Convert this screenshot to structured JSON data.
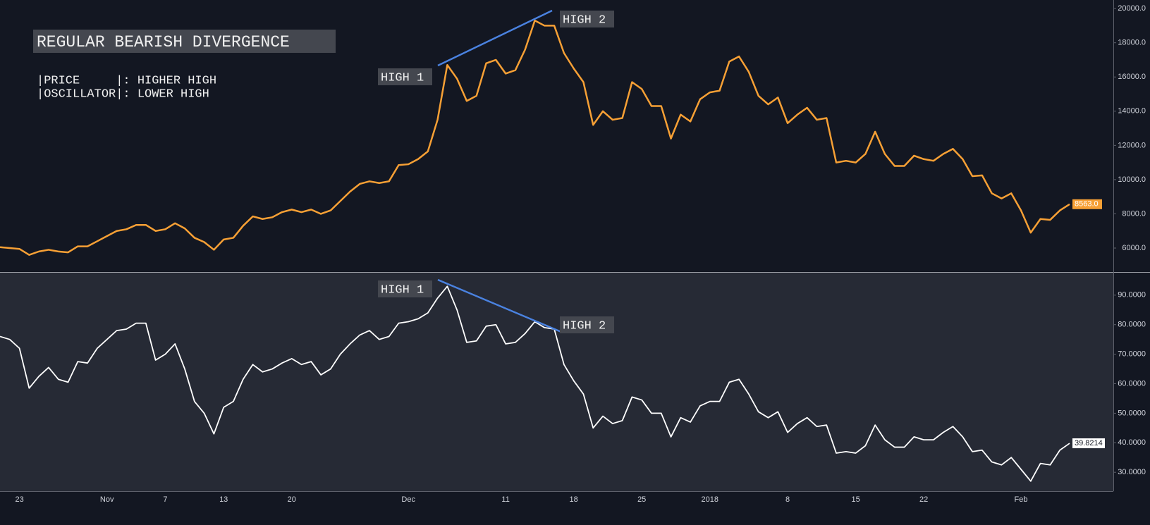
{
  "chart_data": {
    "type": "line",
    "categories": [
      null,
      null,
      "23",
      null,
      null,
      null,
      null,
      null,
      null,
      null,
      null,
      "Nov",
      null,
      null,
      null,
      null,
      null,
      "7",
      null,
      null,
      null,
      null,
      null,
      "13",
      null,
      null,
      null,
      null,
      null,
      null,
      "20",
      null,
      null,
      null,
      null,
      null,
      null,
      null,
      null,
      null,
      null,
      null,
      "Dec",
      null,
      null,
      null,
      null,
      null,
      null,
      null,
      null,
      null,
      "11",
      null,
      null,
      null,
      null,
      null,
      null,
      "18",
      null,
      null,
      null,
      null,
      null,
      null,
      "25",
      null,
      null,
      null,
      null,
      null,
      null,
      "2018",
      null,
      null,
      null,
      null,
      null,
      null,
      null,
      "8",
      null,
      null,
      null,
      null,
      null,
      null,
      "15",
      null,
      null,
      null,
      null,
      null,
      null,
      "22",
      null,
      null,
      null,
      null,
      null,
      null,
      null,
      null,
      null,
      "Feb",
      null,
      null,
      null,
      null,
      null
    ],
    "series": [
      {
        "color": "#f7a035",
        "last_value_label": "8563.0",
        "values": [
          6050,
          6000,
          5950,
          5600,
          5800,
          5900,
          5800,
          5750,
          6100,
          6100,
          6400,
          6700,
          7000,
          7100,
          7350,
          7350,
          7000,
          7100,
          7450,
          7150,
          6600,
          6350,
          5900,
          6500,
          6600,
          7300,
          7850,
          7700,
          7800,
          8100,
          8250,
          8100,
          8250,
          8000,
          8200,
          8750,
          9300,
          9750,
          9900,
          9800,
          9900,
          10850,
          10900,
          11200,
          11650,
          13500,
          16700,
          15900,
          14600,
          14900,
          16800,
          17000,
          16200,
          16400,
          17600,
          19300,
          19000,
          19000,
          17400,
          16500,
          15700,
          13200,
          14000,
          13500,
          13600,
          15700,
          15300,
          14300,
          14300,
          12400,
          13800,
          13400,
          14700,
          15100,
          15200,
          16900,
          17200,
          16300,
          14900,
          14400,
          14800,
          13300,
          13800,
          14200,
          13500,
          13600,
          11000,
          11100,
          11000,
          11500,
          12800,
          11500,
          10800,
          10800,
          11400,
          11200,
          11100,
          11500,
          11800,
          11200,
          10200,
          10250,
          9200,
          8900,
          9200,
          8200,
          6900,
          7700,
          7650,
          8200,
          8563
        ]
      },
      {
        "color": "#ffffff",
        "axis": "y2",
        "last_value_label": "39.8214",
        "values": [
          76,
          75,
          72,
          58.5,
          62.5,
          65.5,
          61.5,
          60.5,
          67.5,
          67,
          72,
          75,
          78,
          78.5,
          80.5,
          80.5,
          68,
          70,
          73.5,
          65,
          54,
          50,
          43,
          52,
          54,
          61.5,
          66.5,
          64,
          65,
          67,
          68.5,
          66.5,
          67.5,
          63,
          65,
          70,
          73.5,
          76.5,
          78,
          75,
          76,
          80.5,
          81,
          82,
          84,
          89,
          93,
          85,
          74,
          74.5,
          79.5,
          80,
          73.5,
          74,
          77,
          81,
          79,
          78.5,
          66.5,
          61,
          56.5,
          45,
          49,
          46.5,
          47.5,
          55.5,
          54.5,
          50,
          50,
          42,
          48.5,
          47,
          52.5,
          54,
          54,
          60.5,
          61.5,
          56.5,
          50.5,
          48.5,
          50.5,
          43.5,
          46.5,
          48.5,
          45.5,
          46,
          36.5,
          37,
          36.5,
          39,
          46,
          41,
          38.5,
          38.5,
          42,
          41,
          41,
          43.5,
          45.5,
          42,
          37,
          37.5,
          33.5,
          32.5,
          35,
          31,
          27,
          33,
          32.5,
          37.5,
          39.8214
        ]
      }
    ],
    "ylim": [
      4600,
      20500
    ],
    "yticks": [
      {
        "value": 6000,
        "label": "6000.0"
      },
      {
        "value": 8000,
        "label": "8000.0"
      },
      {
        "value": 10000,
        "label": "10000.0"
      },
      {
        "value": 12000,
        "label": "12000.0"
      },
      {
        "value": 14000,
        "label": "14000.0"
      },
      {
        "value": 16000,
        "label": "16000.0"
      },
      {
        "value": 18000,
        "label": "18000.0"
      },
      {
        "value": 20000,
        "label": "20000.0"
      }
    ],
    "y2lim": [
      23.6,
      97.6
    ],
    "y2ticks": [
      {
        "value": 30,
        "label": "30.0000"
      },
      {
        "value": 40,
        "label": "40.0000"
      },
      {
        "value": 50,
        "label": "50.0000"
      },
      {
        "value": 60,
        "label": "60.0000"
      },
      {
        "value": 70,
        "label": "70.0000"
      },
      {
        "value": 80,
        "label": "80.0000"
      },
      {
        "value": 90,
        "label": "90.0000"
      }
    ],
    "grid": false,
    "annotations": {
      "title": "REGULAR BEARISH DIVERGENCE",
      "legend": [
        "|PRICE     |: HIGHER HIGH",
        "|OSCILLATOR|: LOWER HIGH"
      ],
      "price_highs": [
        "HIGH 1",
        "HIGH 2"
      ],
      "oscillator_highs": [
        "HIGH 1",
        "HIGH 2"
      ]
    }
  }
}
